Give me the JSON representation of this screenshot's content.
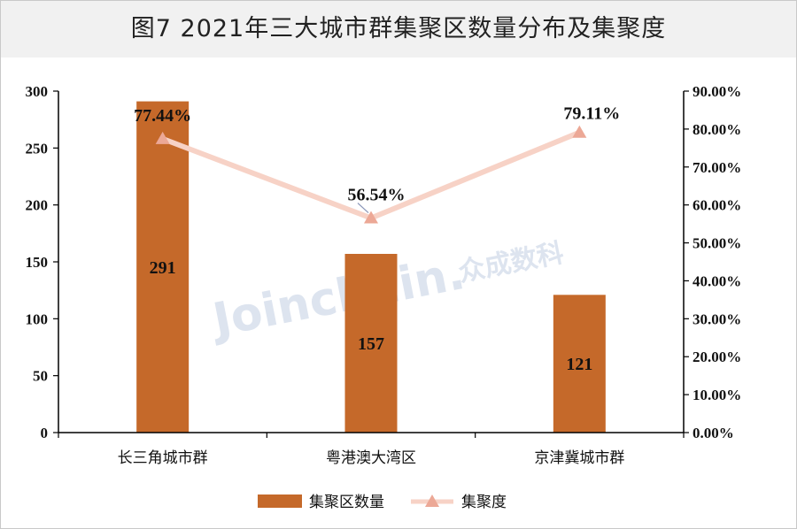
{
  "title": "图7  2021年三大城市群集聚区数量分布及集聚度",
  "watermark": {
    "latin": "Joinchain.",
    "cn": "众成数科"
  },
  "colors": {
    "bar": "#c5692a",
    "line": "#f7d2c6",
    "marker": "#eca896",
    "axis": "#000000"
  },
  "chart_data": {
    "type": "bar+line",
    "categories": [
      "长三角城市群",
      "粤港澳大湾区",
      "京津冀城市群"
    ],
    "series": [
      {
        "name": "集聚区数量",
        "type": "bar",
        "axis": "left",
        "values": [
          291,
          157,
          121
        ],
        "labels": [
          "291",
          "157",
          "121"
        ]
      },
      {
        "name": "集聚度",
        "type": "line",
        "axis": "right",
        "values": [
          77.44,
          56.54,
          79.11
        ],
        "labels": [
          "77.44%",
          "56.54%",
          "79.11%"
        ]
      }
    ],
    "y_left": {
      "min": 0,
      "max": 300,
      "ticks": [
        "0",
        "50",
        "100",
        "150",
        "200",
        "250",
        "300"
      ]
    },
    "y_right": {
      "min": 0,
      "max": 90,
      "ticks": [
        "0.00%",
        "10.00%",
        "20.00%",
        "30.00%",
        "40.00%",
        "50.00%",
        "60.00%",
        "70.00%",
        "80.00%",
        "90.00%"
      ]
    },
    "legend": {
      "position": "bottom"
    },
    "grid": false
  }
}
